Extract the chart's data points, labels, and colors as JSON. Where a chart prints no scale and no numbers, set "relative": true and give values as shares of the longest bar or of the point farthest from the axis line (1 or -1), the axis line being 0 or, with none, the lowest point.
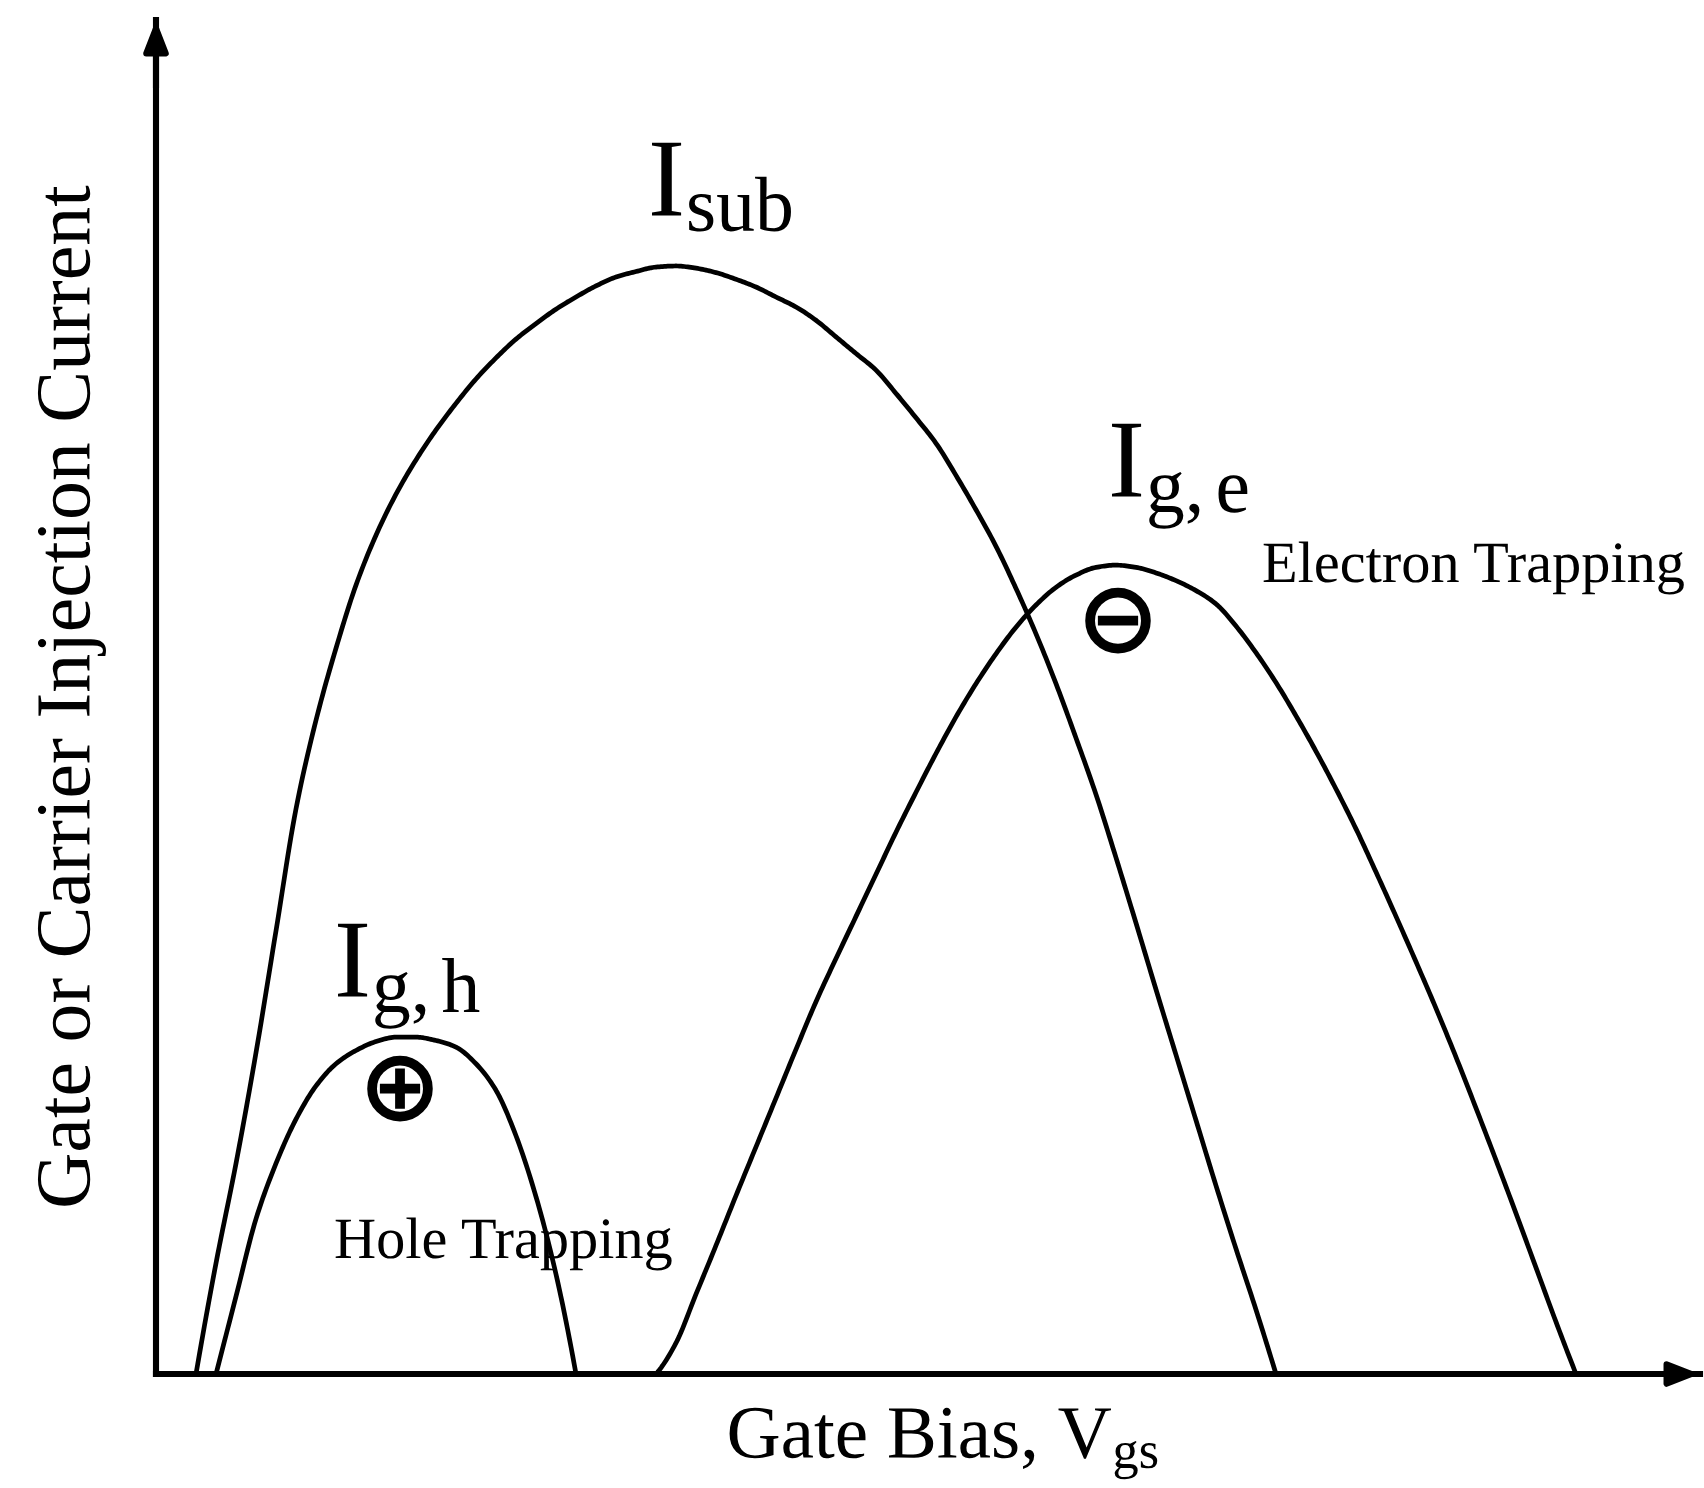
{
  "chart_data": {
    "type": "line",
    "relative": true,
    "line_style": "solid",
    "xlabel": "Gate Bias, V$_{gs}$",
    "ylabel": "Gate or Carrier Injection Current",
    "categories": [
      null,
      null,
      null,
      null,
      null,
      null,
      null,
      null,
      null,
      null,
      null,
      null,
      null,
      null,
      null,
      null,
      null,
      null,
      null,
      null,
      null,
      null,
      null,
      null,
      null,
      null,
      null,
      null,
      null,
      null,
      null,
      null,
      null,
      null,
      null,
      null,
      null,
      null,
      null,
      null,
      null,
      null,
      null,
      null,
      null,
      null,
      null,
      null,
      null,
      null,
      null,
      null,
      null,
      null,
      null,
      null,
      null,
      null,
      null,
      null,
      null,
      null,
      null,
      null,
      null,
      null,
      null,
      null,
      null,
      null,
      null,
      null,
      null,
      null,
      null,
      null,
      null,
      null
    ],
    "series": [
      {
        "name": "I$_{sub}$",
        "color": "#000000",
        "values": [
          null,
          null,
          0,
          0.1,
          0.19,
          0.29,
          0.4,
          0.51,
          0.59,
          0.655,
          0.712,
          0.757,
          0.794,
          0.825,
          0.852,
          0.876,
          0.898,
          0.917,
          0.934,
          0.948,
          0.961,
          0.972,
          0.982,
          0.99,
          0.995,
          0.999,
          1.0,
          0.998,
          0.994,
          0.988,
          0.981,
          0.972,
          0.963,
          0.951,
          0.936,
          0.921,
          0.906,
          0.885,
          0.863,
          0.84,
          0.811,
          0.78,
          0.747,
          0.709,
          0.668,
          0.623,
          0.574,
          0.523,
          0.466,
          0.407,
          0.347,
          0.288,
          0.229,
          0.17,
          0.113,
          0.058,
          0,
          null,
          null,
          null,
          null,
          null,
          null,
          null,
          null,
          null,
          null,
          null,
          null,
          null,
          null,
          null,
          null,
          null,
          null,
          null,
          null,
          null
        ]
      },
      {
        "name": "I$_{g,e}$",
        "color": "#000000",
        "values": [
          null,
          null,
          null,
          null,
          null,
          null,
          null,
          null,
          null,
          null,
          null,
          null,
          null,
          null,
          null,
          null,
          null,
          null,
          null,
          null,
          null,
          null,
          null,
          null,
          null,
          0,
          0.028,
          0.072,
          0.116,
          0.161,
          0.205,
          0.249,
          0.293,
          0.336,
          0.375,
          0.413,
          0.451,
          0.489,
          0.525,
          0.56,
          0.593,
          0.623,
          0.65,
          0.674,
          0.694,
          0.71,
          0.721,
          0.728,
          0.73,
          0.728,
          0.723,
          0.716,
          0.707,
          0.695,
          0.675,
          0.651,
          0.624,
          0.594,
          0.562,
          0.528,
          0.492,
          0.453,
          0.413,
          0.372,
          0.33,
          0.286,
          0.24,
          0.193,
          0.145,
          0.096,
          0.047,
          0,
          null,
          null,
          null,
          null,
          null,
          null
        ]
      },
      {
        "name": "I$_{g,h}$",
        "color": "#000000",
        "values": [
          null,
          null,
          null,
          0,
          0.07,
          0.14,
          0.19,
          0.23,
          0.26,
          0.28,
          0.292,
          0.3,
          0.304,
          0.304,
          0.301,
          0.295,
          0.28,
          0.256,
          0.215,
          0.16,
          0.09,
          0,
          null,
          null,
          null,
          null,
          null,
          null,
          null,
          null,
          null,
          null,
          null,
          null,
          null,
          null,
          null,
          null,
          null,
          null,
          null,
          null,
          null,
          null,
          null,
          null,
          null,
          null,
          null,
          null,
          null,
          null,
          null,
          null,
          null,
          null,
          null,
          null,
          null,
          null,
          null,
          null,
          null,
          null,
          null,
          null,
          null,
          null,
          null,
          null,
          null,
          null,
          null,
          null,
          null,
          null,
          null,
          null
        ]
      }
    ],
    "annotations": [
      "Electron Trapping",
      "⊖",
      "⊕",
      "Hole Trapping"
    ]
  }
}
